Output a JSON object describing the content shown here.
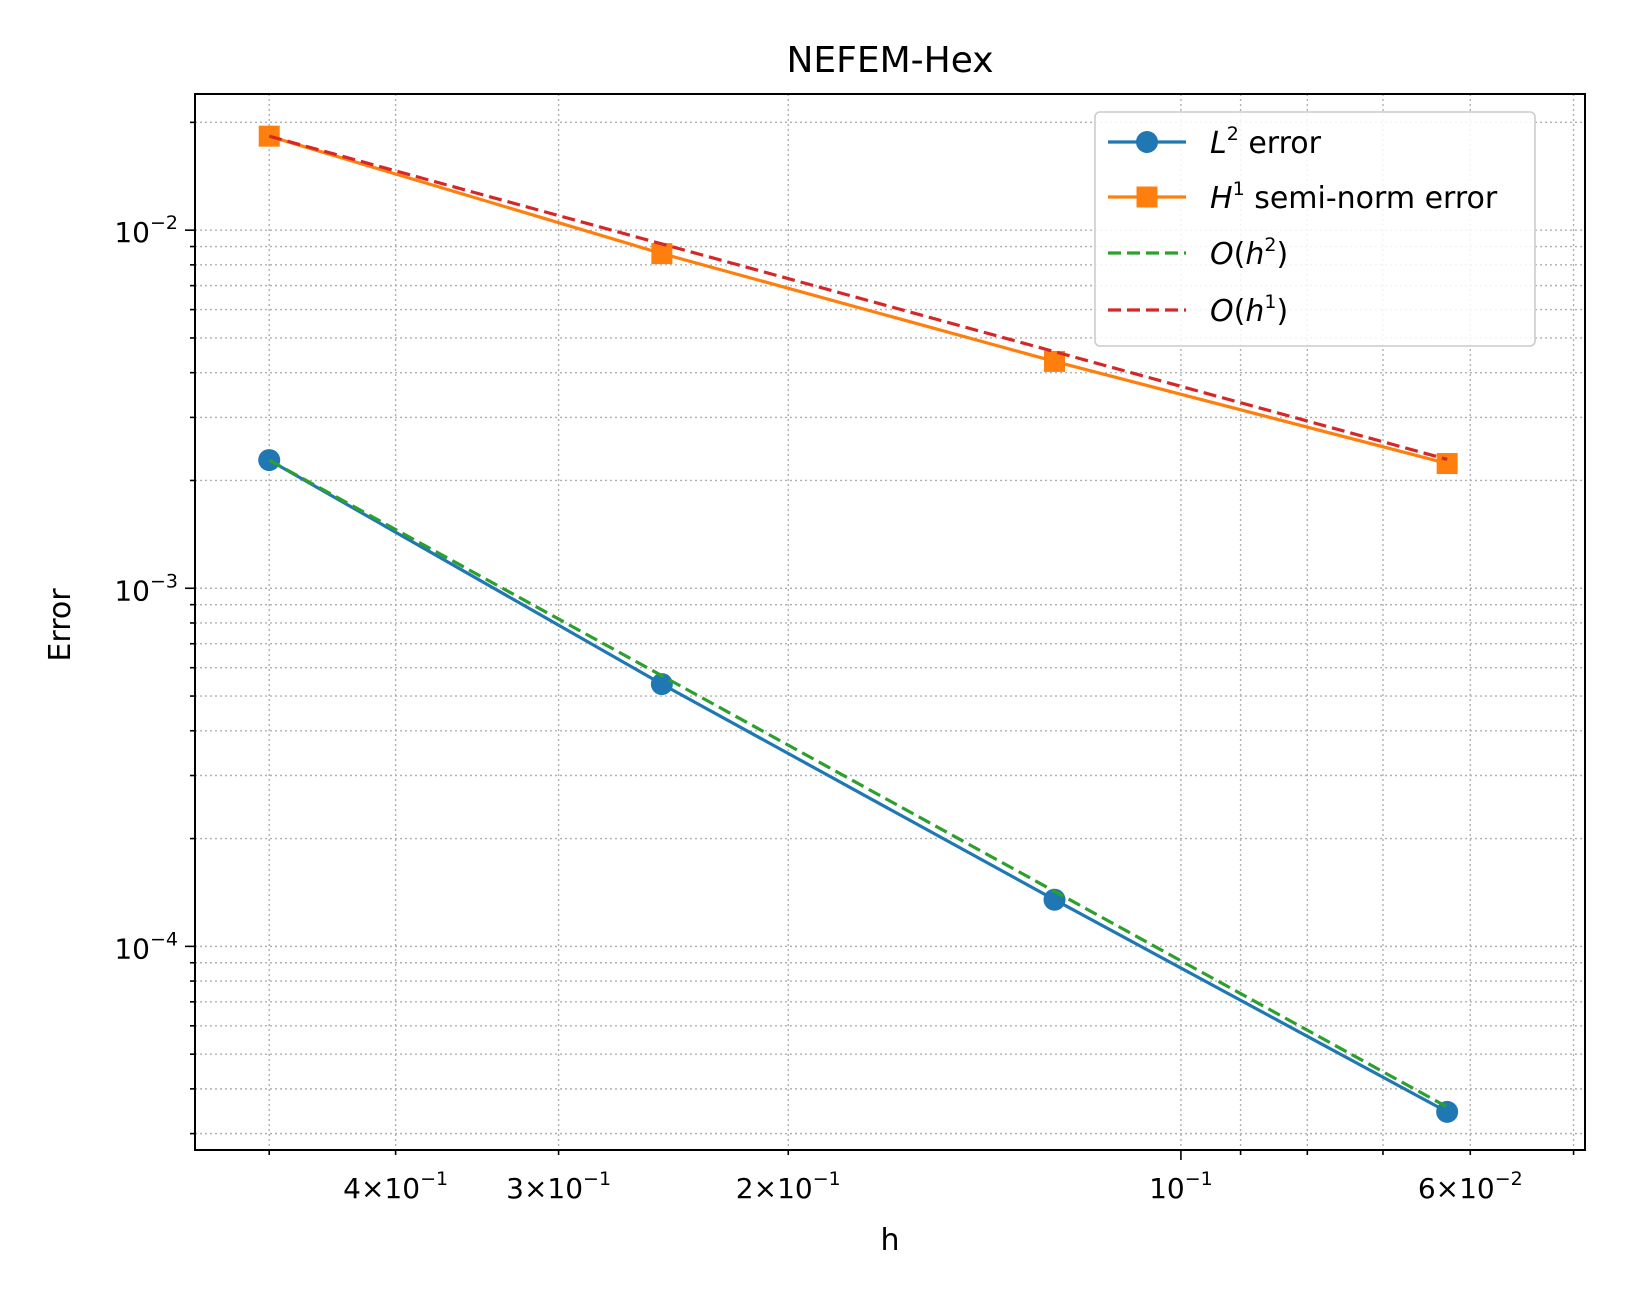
{
  "chart_data": {
    "type": "line",
    "title": "NEFEM-Hex",
    "xlabel": "h",
    "ylabel": "Error",
    "xscale": "log",
    "yscale": "log",
    "x_inverted": true,
    "xlim": [
      0.57,
      0.049
    ],
    "ylim": [
      2.7e-05,
      0.024
    ],
    "grid": true,
    "legend_position": "top-right",
    "x_tick_labels": [
      {
        "value": 0.4,
        "mantissa": "4",
        "exponent": "−1"
      },
      {
        "value": 0.3,
        "mantissa": "3",
        "exponent": "−1"
      },
      {
        "value": 0.2,
        "mantissa": "2",
        "exponent": "−1"
      },
      {
        "value": 0.1,
        "mantissa": "",
        "exponent": "−1"
      },
      {
        "value": 0.06,
        "mantissa": "6",
        "exponent": "−2"
      }
    ],
    "y_tick_labels": [
      {
        "value": 0.01,
        "exponent": "−2"
      },
      {
        "value": 0.001,
        "exponent": "−3"
      },
      {
        "value": 0.0001,
        "exponent": "−4"
      }
    ],
    "series": [
      {
        "name": "L² error",
        "legend": {
          "letter": "L",
          "sup": "2",
          "tail": " error"
        },
        "color": "#1f77b4",
        "linestyle": "solid",
        "marker": "circle",
        "x": [
          0.5,
          0.25,
          0.125,
          0.0625
        ],
        "y": [
          0.00228,
          0.00054,
          0.000135,
          3.45e-05
        ]
      },
      {
        "name": "H¹ semi-norm error",
        "legend": {
          "letter": "H",
          "sup": "1",
          "tail": " semi-norm error"
        },
        "color": "#ff7f0e",
        "linestyle": "solid",
        "marker": "square",
        "x": [
          0.5,
          0.25,
          0.125,
          0.0625
        ],
        "y": [
          0.0183,
          0.0086,
          0.0043,
          0.00223
        ]
      },
      {
        "name": "O(h²)",
        "legend": {
          "letter": "O(",
          "mid": "h",
          "sup": "2",
          "tail": ")"
        },
        "color": "#2ca02c",
        "linestyle": "dashed",
        "marker": "none",
        "x": [
          0.5,
          0.0625
        ],
        "y": [
          0.00228,
          3.56e-05
        ]
      },
      {
        "name": "O(h¹)",
        "legend": {
          "letter": "O(",
          "mid": "h",
          "sup": "1",
          "tail": ")"
        },
        "color": "#d62728",
        "linestyle": "dashed",
        "marker": "none",
        "x": [
          0.5,
          0.0625
        ],
        "y": [
          0.0183,
          0.00229
        ]
      }
    ]
  }
}
